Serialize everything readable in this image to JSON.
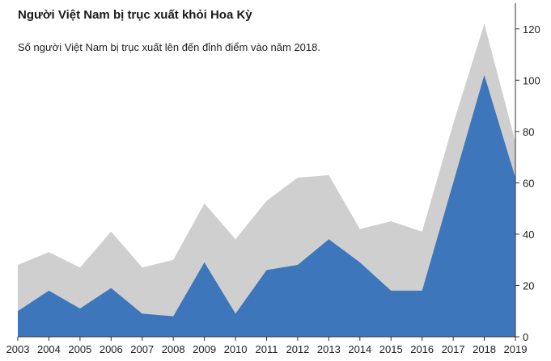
{
  "chart_data": {
    "type": "area",
    "title": "Người Việt Nam bị trục xuất khỏi Hoa Kỳ",
    "subtitle": "Số người Việt Nam bị trục xuất lên đến đỉnh điểm vào năm 2018.",
    "x": [
      "2003",
      "2004",
      "2005",
      "2006",
      "2007",
      "2008",
      "2009",
      "2010",
      "2011",
      "2012",
      "2013",
      "2014",
      "2015",
      "2016",
      "2017",
      "2018",
      "2019"
    ],
    "series": [
      {
        "values": [
          28,
          33,
          27,
          41,
          27,
          30,
          52,
          38,
          53,
          62,
          63,
          42,
          45,
          41,
          83,
          122,
          76
        ],
        "color": "#cfcfcf"
      },
      {
        "values": [
          10,
          18,
          11,
          19,
          9,
          8,
          29,
          9,
          26,
          28,
          38,
          29,
          18,
          18,
          60,
          102,
          62
        ],
        "color": "#3d76bb"
      }
    ],
    "ylim": [
      0,
      130
    ],
    "yticks": [
      0,
      20,
      40,
      60,
      80,
      100,
      120
    ],
    "y_axis_position": "right",
    "grid": false,
    "legend": "none"
  }
}
